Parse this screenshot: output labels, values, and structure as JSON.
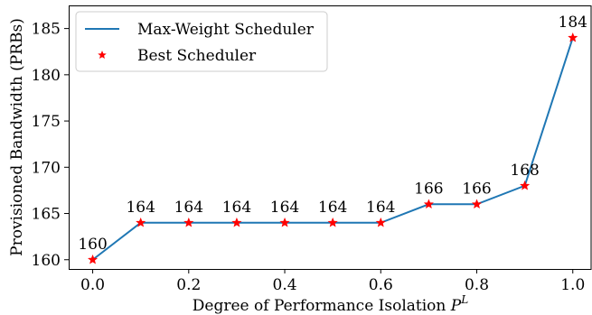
{
  "chart_data": {
    "type": "line",
    "x": [
      0.0,
      0.1,
      0.2,
      0.3,
      0.4,
      0.5,
      0.6,
      0.7,
      0.8,
      0.9,
      1.0
    ],
    "series": [
      {
        "name": "Max-Weight Scheduler",
        "kind": "line",
        "color": "#1f77b4",
        "values": [
          160,
          164,
          164,
          164,
          164,
          164,
          164,
          166,
          166,
          168,
          184
        ]
      },
      {
        "name": "Best Scheduler",
        "kind": "marker",
        "marker": "star",
        "color": "#ff0000",
        "values": [
          160,
          164,
          164,
          164,
          164,
          164,
          164,
          166,
          166,
          168,
          184
        ]
      }
    ],
    "data_labels": [
      "160",
      "164",
      "164",
      "164",
      "164",
      "164",
      "164",
      "166",
      "166",
      "168",
      "184"
    ],
    "xlabel_prefix": "Degree of Performance Isolation ",
    "xlabel_symbol": "P",
    "xlabel_superscript": "L",
    "ylabel": "Provisioned Bandwidth (PRBs)",
    "xlim": [
      -0.05,
      1.04
    ],
    "ylim": [
      159,
      187.5
    ],
    "xticks": [
      0.0,
      0.2,
      0.4,
      0.6,
      0.8,
      1.0
    ],
    "xtick_labels": [
      "0.0",
      "0.2",
      "0.4",
      "0.6",
      "0.8",
      "1.0"
    ],
    "yticks": [
      160,
      165,
      170,
      175,
      180,
      185
    ],
    "ytick_labels": [
      "160",
      "165",
      "170",
      "175",
      "180",
      "185"
    ],
    "grid": false,
    "legend_position": "top-left"
  }
}
